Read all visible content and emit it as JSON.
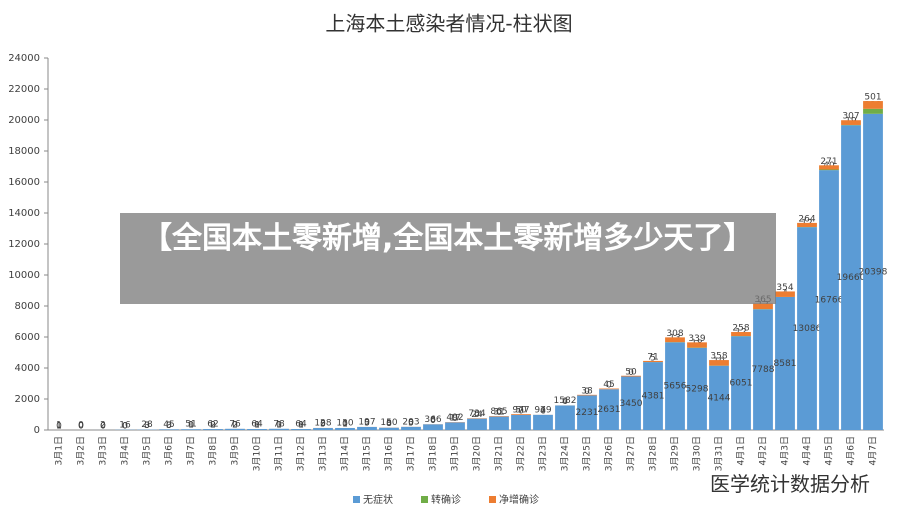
{
  "chart_data": {
    "type": "stacked-bar",
    "title": "上海本土感染者情况-柱状图",
    "categories": [
      "3月1日",
      "3月2日",
      "3月3日",
      "3月4日",
      "3月5日",
      "3月6日",
      "3月7日",
      "3月8日",
      "3月9日",
      "3月10日",
      "3月11日",
      "3月12日",
      "3月13日",
      "3月14日",
      "3月15日",
      "3月16日",
      "3月17日",
      "3月18日",
      "3月19日",
      "3月20日",
      "3月21日",
      "3月22日",
      "3月23日",
      "3月24日",
      "3月25日",
      "3月26日",
      "3月27日",
      "3月28日",
      "3月29日",
      "3月30日",
      "3月31日",
      "4月1日",
      "4月2日",
      "4月3日",
      "4月4日",
      "4月5日",
      "4月6日",
      "4月7日"
    ],
    "series": [
      {
        "name": "无症状",
        "color": "#5b9bd5",
        "values": [
          1,
          0,
          2,
          16,
          28,
          45,
          51,
          62,
          76,
          64,
          78,
          64,
          128,
          130,
          197,
          150,
          203,
          366,
          492,
          734,
          865,
          977,
          979,
          1582,
          2231,
          2631,
          3450,
          4381,
          5656,
          5298,
          4144,
          6051,
          7788,
          8581,
          13086,
          16766,
          19660,
          20398
        ]
      },
      {
        "name": "转确诊",
        "color": "#70ad47",
        "values": [
          0,
          0,
          0,
          0,
          0,
          0,
          0,
          0,
          0,
          0,
          0,
          0,
          0,
          0,
          0,
          0,
          0,
          0,
          0,
          0,
          0,
          0,
          0,
          0,
          0,
          0,
          0,
          5,
          13,
          18,
          10,
          12,
          13,
          4,
          12,
          40,
          19,
          323
        ]
      },
      {
        "name": "净增确诊",
        "color": "#ed7d31",
        "values": [
          1,
          0,
          0,
          0,
          3,
          3,
          1,
          2,
          2,
          1,
          1,
          1,
          5,
          1,
          3,
          8,
          5,
          8,
          17,
          24,
          31,
          50,
          4,
          4,
          38,
          45,
          50,
          71,
          308,
          339,
          358,
          258,
          365,
          354,
          264,
          271,
          307,
          501
        ]
      }
    ],
    "ylim": [
      0,
      24000
    ],
    "yticks": [
      0,
      2000,
      4000,
      6000,
      8000,
      10000,
      12000,
      14000,
      16000,
      18000,
      20000,
      22000,
      24000
    ],
    "grid": false,
    "legend": "bottom"
  },
  "banner": "【全国本土零新增,全国本土零新增多少天了】",
  "watermark": "医学统计数据分析"
}
